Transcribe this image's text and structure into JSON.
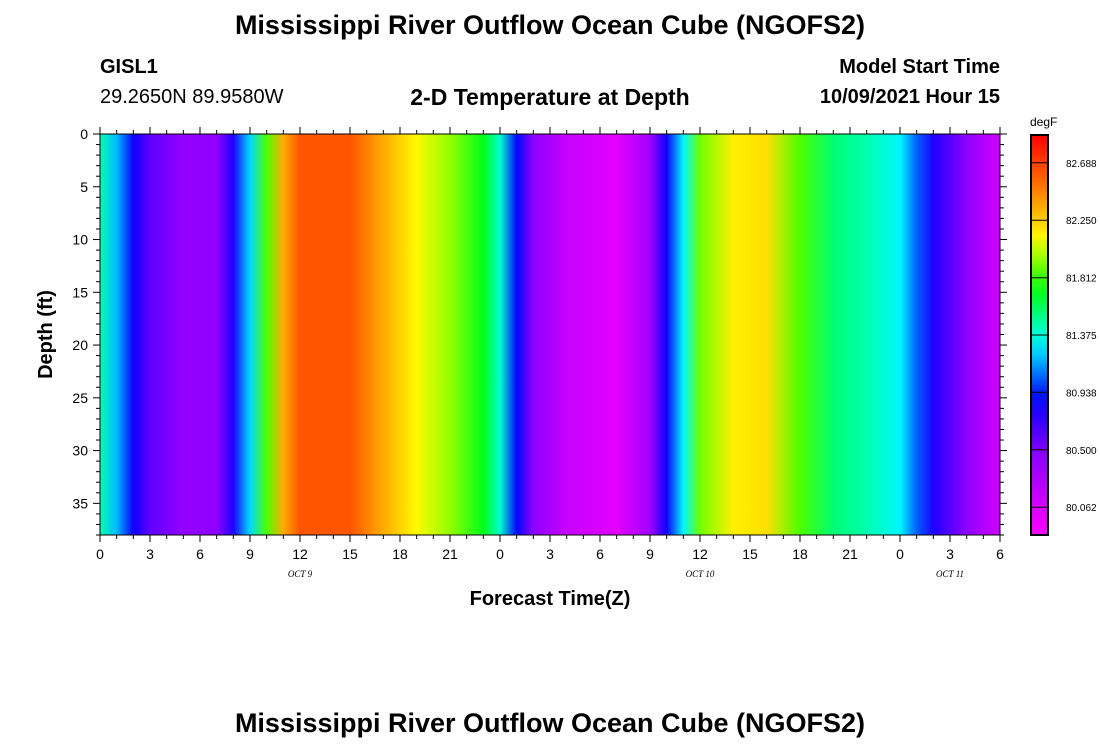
{
  "header": {
    "title": "Mississippi River Outflow Ocean Cube (NGOFS2)",
    "station_id": "GISL1",
    "station_coords": "29.2650N  89.9580W",
    "subtitle": "2-D Temperature at Depth",
    "model_start_label": "Model Start Time",
    "model_start_value": "10/09/2021 Hour 15"
  },
  "footer": {
    "title": "Mississippi River Outflow Ocean Cube (NGOFS2)"
  },
  "chart_data": {
    "type": "heatmap",
    "xlabel": "Forecast Time(Z)",
    "ylabel": "Depth (ft)",
    "x_range_hours": [
      0,
      54
    ],
    "y_range": [
      0,
      38
    ],
    "y_inverted": true,
    "x_ticks": [
      {
        "hour": 0,
        "label": "0"
      },
      {
        "hour": 3,
        "label": "3"
      },
      {
        "hour": 6,
        "label": "6"
      },
      {
        "hour": 9,
        "label": "9"
      },
      {
        "hour": 12,
        "label": "12"
      },
      {
        "hour": 15,
        "label": "15"
      },
      {
        "hour": 18,
        "label": "18"
      },
      {
        "hour": 21,
        "label": "21"
      },
      {
        "hour": 24,
        "label": "0"
      },
      {
        "hour": 27,
        "label": "3"
      },
      {
        "hour": 30,
        "label": "6"
      },
      {
        "hour": 33,
        "label": "9"
      },
      {
        "hour": 36,
        "label": "12"
      },
      {
        "hour": 39,
        "label": "15"
      },
      {
        "hour": 42,
        "label": "18"
      },
      {
        "hour": 45,
        "label": "21"
      },
      {
        "hour": 48,
        "label": "0"
      },
      {
        "hour": 51,
        "label": "3"
      },
      {
        "hour": 54,
        "label": "6"
      }
    ],
    "date_labels": [
      {
        "hour": 12,
        "label": "OCT 9"
      },
      {
        "hour": 36,
        "label": "OCT 10"
      },
      {
        "hour": 51,
        "label": "OCT 11"
      }
    ],
    "y_ticks": [
      0,
      5,
      10,
      15,
      20,
      25,
      30,
      35
    ],
    "colorbar": {
      "unit": "degF",
      "min": 79.85,
      "max": 82.9,
      "labels": [
        "82.688",
        "82.250",
        "81.812",
        "81.375",
        "80.938",
        "80.500",
        "80.062"
      ],
      "label_values": [
        82.688,
        82.25,
        81.812,
        81.375,
        80.938,
        80.5,
        80.062
      ]
    },
    "surface_profile": [
      {
        "hour": 0,
        "degF": 81.45
      },
      {
        "hour": 1,
        "degF": 81.2
      },
      {
        "hour": 2,
        "degF": 80.85
      },
      {
        "hour": 3,
        "degF": 80.6
      },
      {
        "hour": 5,
        "degF": 80.42
      },
      {
        "hour": 7,
        "degF": 80.45
      },
      {
        "hour": 8,
        "degF": 80.8
      },
      {
        "hour": 9,
        "degF": 81.25
      },
      {
        "hour": 10,
        "degF": 81.85
      },
      {
        "hour": 11,
        "degF": 82.35
      },
      {
        "hour": 12,
        "degF": 82.62
      },
      {
        "hour": 15,
        "degF": 82.62
      },
      {
        "hour": 17,
        "degF": 82.35
      },
      {
        "hour": 19,
        "degF": 82.12
      },
      {
        "hour": 21,
        "degF": 81.95
      },
      {
        "hour": 23,
        "degF": 81.7
      },
      {
        "hour": 24,
        "degF": 81.4
      },
      {
        "hour": 25,
        "degF": 80.9
      },
      {
        "hour": 26,
        "degF": 80.45
      },
      {
        "hour": 28,
        "degF": 80.15
      },
      {
        "hour": 31,
        "degF": 80.0
      },
      {
        "hour": 33,
        "degF": 80.35
      },
      {
        "hour": 34,
        "degF": 80.85
      },
      {
        "hour": 35,
        "degF": 81.3
      },
      {
        "hour": 36,
        "degF": 81.9
      },
      {
        "hour": 38,
        "degF": 82.15
      },
      {
        "hour": 40,
        "degF": 82.2
      },
      {
        "hour": 42,
        "degF": 81.85
      },
      {
        "hour": 44,
        "degF": 81.55
      },
      {
        "hour": 46,
        "degF": 81.45
      },
      {
        "hour": 48,
        "degF": 81.3
      },
      {
        "hour": 49,
        "degF": 81.05
      },
      {
        "hour": 50,
        "degF": 80.8
      },
      {
        "hour": 52,
        "degF": 80.45
      },
      {
        "hour": 54,
        "degF": 80.1
      }
    ]
  }
}
